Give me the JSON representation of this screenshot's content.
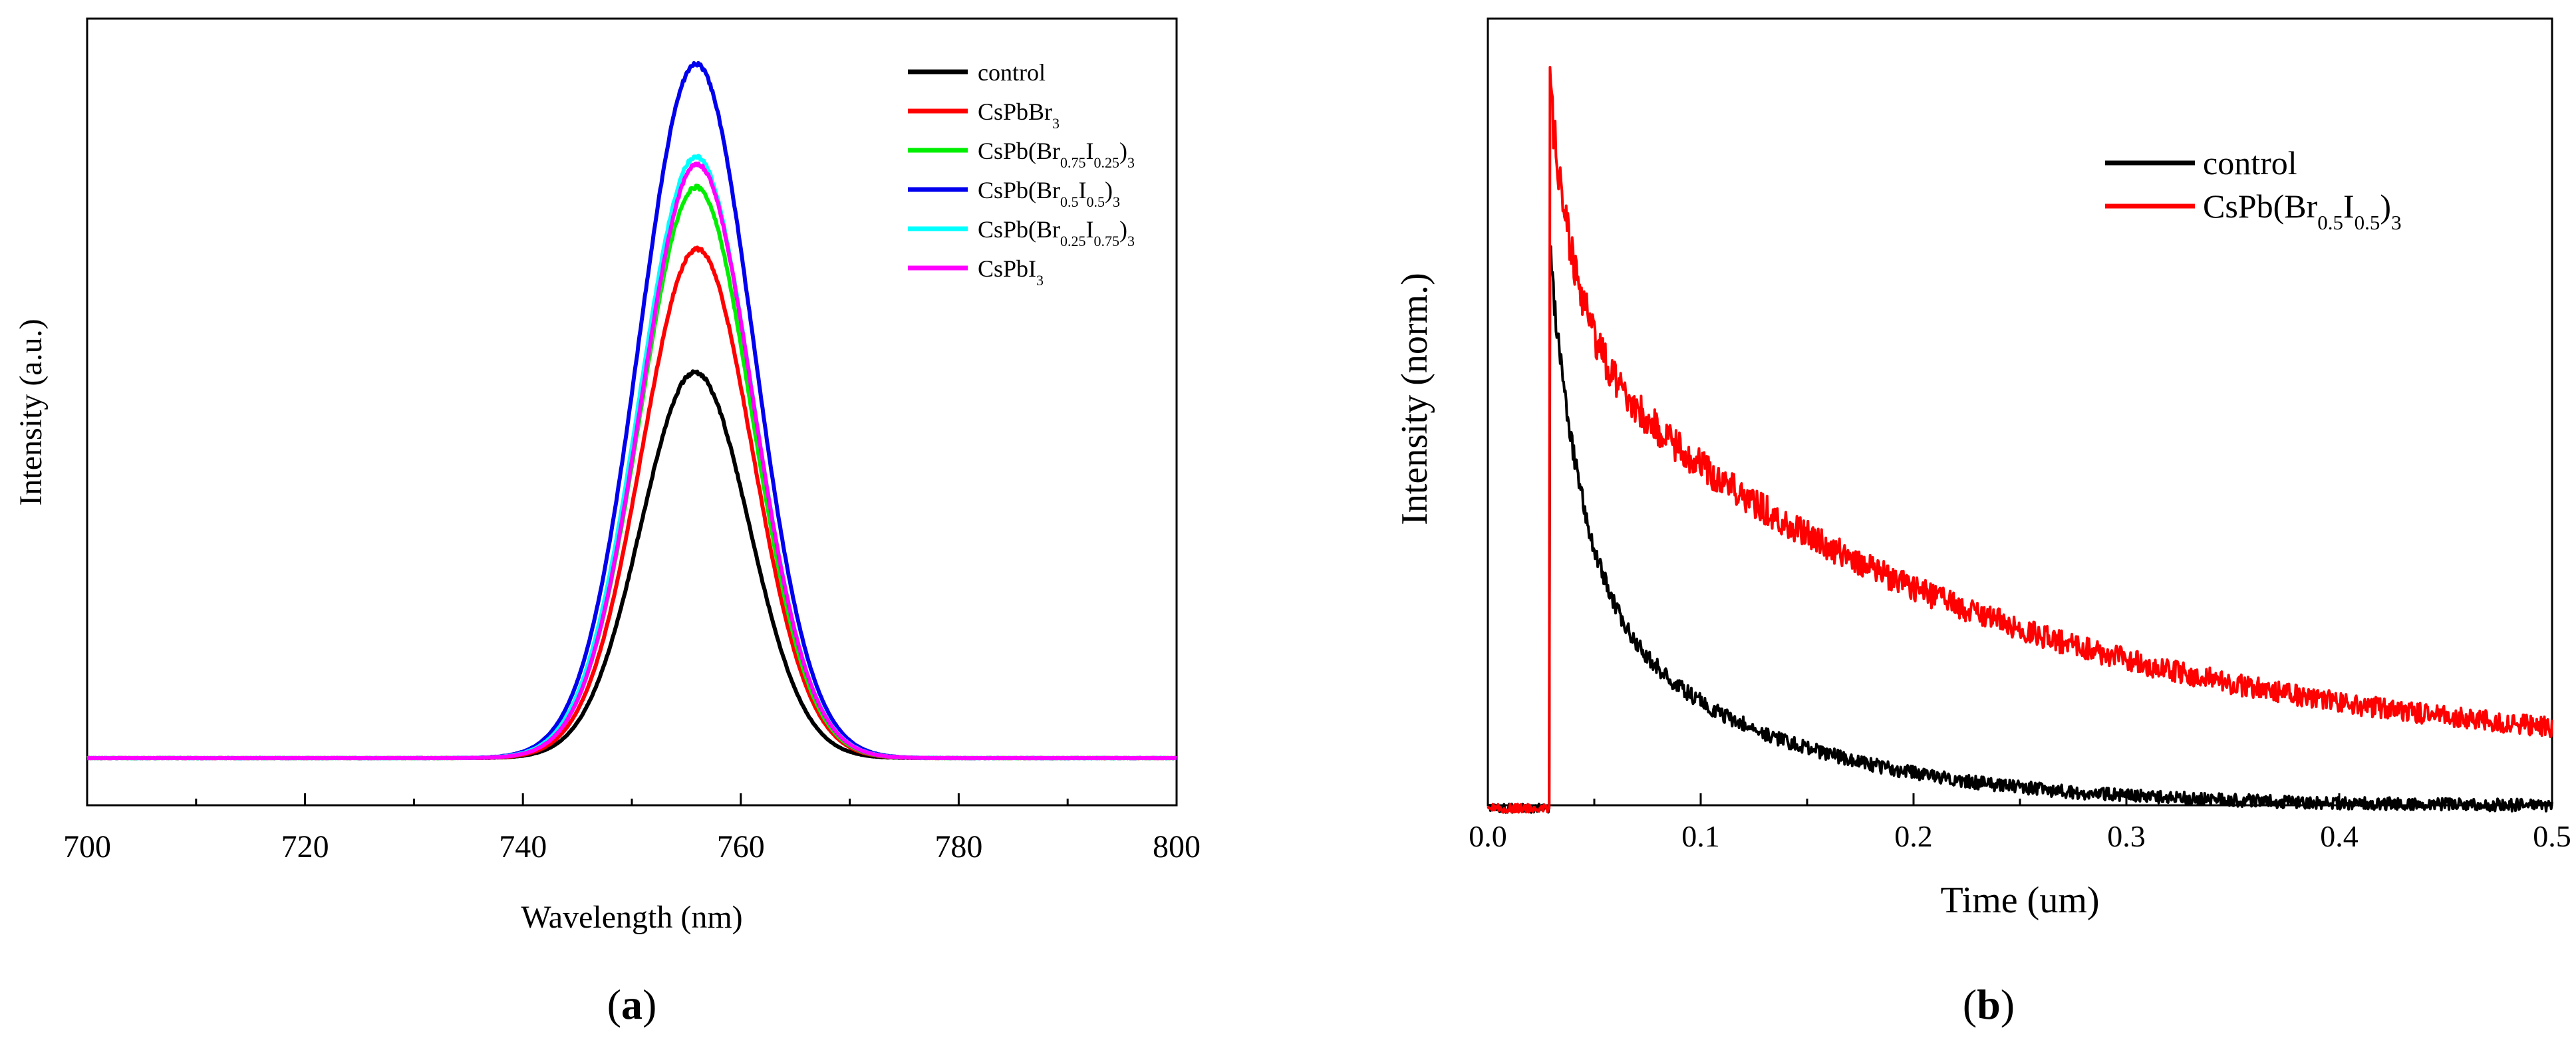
{
  "chart_data": [
    {
      "type": "line",
      "panel_label": "(a)",
      "panel_letter": "a",
      "title": "",
      "xlabel": "Wavelength (nm)",
      "ylabel": "Intensity (a.u.)",
      "xlim": [
        700,
        800
      ],
      "ylim": [
        0,
        1.1
      ],
      "x_ticks": [
        700,
        720,
        740,
        760,
        780,
        800
      ],
      "y_ticks_shown": false,
      "legend_position": "top-right",
      "series": [
        {
          "name": "control",
          "label_parts": [
            [
              "control",
              "n"
            ]
          ],
          "color": "#000000",
          "peak_nm": 755.8,
          "peak_value": 0.5,
          "sigma": 4.95
        },
        {
          "name": "CsPbBr3",
          "label_parts": [
            [
              "CsPbBr",
              "n"
            ],
            [
              "3",
              "sub"
            ]
          ],
          "color": "#ff0000",
          "peak_nm": 756.0,
          "peak_value": 0.66,
          "sigma": 5.05
        },
        {
          "name": "CsPb(Br0.75I0.25)3",
          "label_parts": [
            [
              "CsPb(Br",
              "n"
            ],
            [
              "0.75",
              "sub"
            ],
            [
              "I",
              "n"
            ],
            [
              "0.25",
              "sub"
            ],
            [
              ")",
              "n"
            ],
            [
              "3",
              "sub"
            ]
          ],
          "color": "#00ee00",
          "peak_nm": 755.9,
          "peak_value": 0.74,
          "sigma": 5.1
        },
        {
          "name": "CsPb(Br0.5I0.5)3",
          "label_parts": [
            [
              "CsPb(Br",
              "n"
            ],
            [
              "0.5",
              "sub"
            ],
            [
              "I",
              "n"
            ],
            [
              "0.5",
              "sub"
            ],
            [
              ")",
              "n"
            ],
            [
              "3",
              "sub"
            ]
          ],
          "color": "#0000ee",
          "peak_nm": 755.9,
          "peak_value": 0.9,
          "sigma": 5.2
        },
        {
          "name": "CsPb(Br0.25I0.75)3",
          "label_parts": [
            [
              "CsPb(Br",
              "n"
            ],
            [
              "0.25",
              "sub"
            ],
            [
              "I",
              "n"
            ],
            [
              "0.75",
              "sub"
            ],
            [
              ")",
              "n"
            ],
            [
              "3",
              "sub"
            ]
          ],
          "color": "#00ffff",
          "peak_nm": 755.9,
          "peak_value": 0.78,
          "sigma": 5.15
        },
        {
          "name": "CsPbI3",
          "label_parts": [
            [
              "CsPbI",
              "n"
            ],
            [
              "3",
              "sub"
            ]
          ],
          "color": "#ff00ff",
          "peak_nm": 756.0,
          "peak_value": 0.77,
          "sigma": 5.1
        }
      ]
    },
    {
      "type": "line",
      "panel_label": "(b)",
      "panel_letter": "b",
      "title": "",
      "xlabel": "Time (um)",
      "ylabel": "Intensity (norm.)",
      "xlim": [
        0,
        0.5
      ],
      "ylim": [
        0,
        1.0
      ],
      "x_ticks": [
        0.0,
        0.1,
        0.2,
        0.3,
        0.4,
        0.5
      ],
      "x_tick_labels": [
        "0.0",
        "0.1",
        "0.2",
        "0.3",
        "0.4",
        "0.5"
      ],
      "y_ticks_shown": false,
      "legend_position": "top-right",
      "series": [
        {
          "name": "control",
          "label_parts": [
            [
              "control",
              "n"
            ]
          ],
          "color": "#000000",
          "t0": 0.029,
          "baseline": 0.088,
          "peak_value": 0.73,
          "tail_value": 0.09,
          "fast_amp": 0.38,
          "fast_tau": 0.015,
          "slow_amp": 0.26,
          "slow_tau": 0.09,
          "noise": 0.012
        },
        {
          "name": "CsPb(Br0.5I0.5)3",
          "label_parts": [
            [
              "CsPb(Br",
              "n"
            ],
            [
              "0.5",
              "sub"
            ],
            [
              "I",
              "n"
            ],
            [
              "0.5",
              "sub"
            ],
            [
              ")",
              "n"
            ],
            [
              "3",
              "sub"
            ]
          ],
          "color": "#ff0000",
          "t0": 0.029,
          "baseline": 0.088,
          "peak_value": 0.92,
          "tail_value": 0.14,
          "fast_amp": 0.28,
          "fast_tau": 0.012,
          "slow_amp": 0.5,
          "slow_tau": 0.19,
          "noise": 0.018
        }
      ]
    }
  ]
}
